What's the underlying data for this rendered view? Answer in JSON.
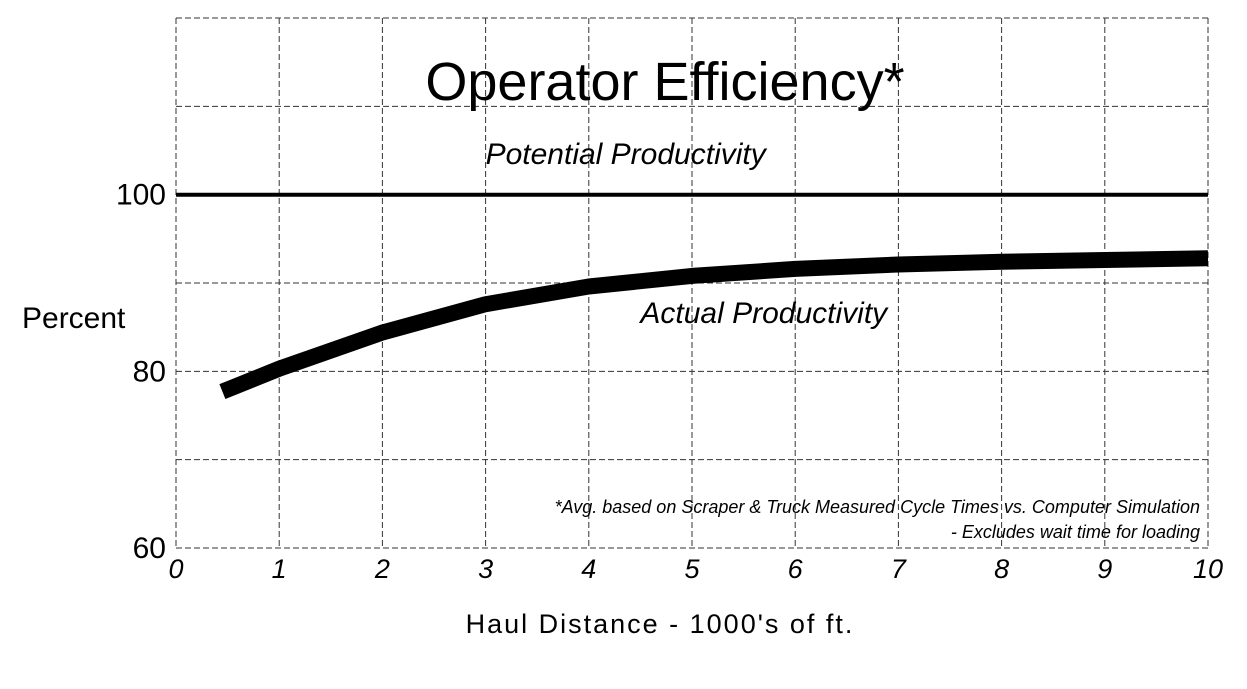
{
  "chart_data": {
    "type": "line",
    "title": "Operator Efficiency*",
    "xlabel": "Haul Distance - 1000's of ft.",
    "ylabel": "Percent",
    "xlim": [
      0,
      10
    ],
    "ylim": [
      60,
      120
    ],
    "x_ticks": [
      "0",
      "1",
      "2",
      "3",
      "4",
      "5",
      "6",
      "7",
      "8",
      "9",
      "10"
    ],
    "y_ticks": [
      {
        "value": 60,
        "label": "60"
      },
      {
        "value": 80,
        "label": "80"
      },
      {
        "value": 100,
        "label": "100"
      }
    ],
    "grid": true,
    "series": [
      {
        "name": "Potential Productivity",
        "x": [
          0,
          10
        ],
        "y": [
          100,
          100
        ],
        "label_anchor": {
          "x": 3.0,
          "y": 103.5
        }
      },
      {
        "name": "Actual Productivity",
        "x": [
          0.45,
          1,
          2,
          3,
          4,
          5,
          6,
          7,
          8,
          9,
          10
        ],
        "y": [
          77.7,
          80.3,
          84.4,
          87.6,
          89.6,
          90.8,
          91.6,
          92.1,
          92.4,
          92.6,
          92.8
        ],
        "label_anchor": {
          "x": 4.5,
          "y": 85.5
        }
      }
    ],
    "annotations": [
      "*Avg. based on Scraper & Truck Measured Cycle Times vs. Computer Simulation",
      "- Excludes wait time for loading"
    ]
  }
}
